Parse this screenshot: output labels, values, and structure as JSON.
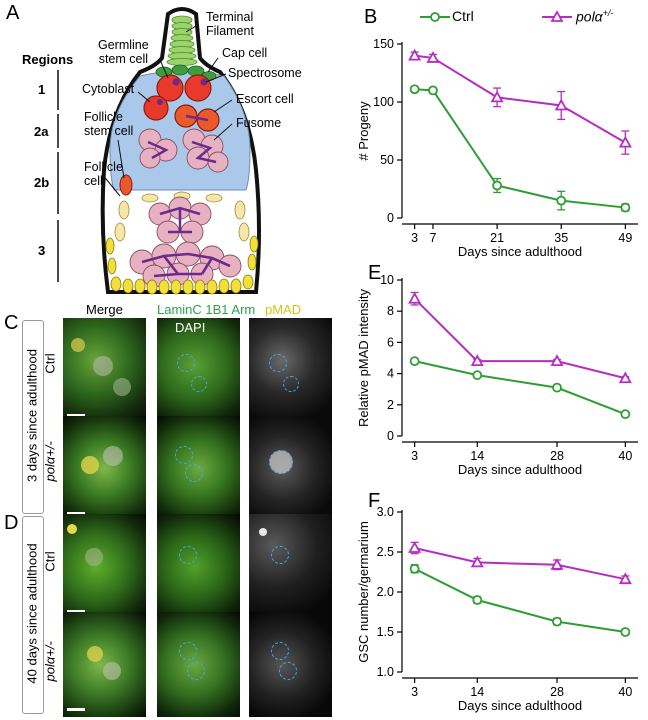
{
  "panel_letters": {
    "a": "A",
    "b": "B",
    "c": "C",
    "d": "D",
    "e": "E",
    "f": "F"
  },
  "diagram": {
    "regions_title": "Regions",
    "regions": [
      "1",
      "2a",
      "2b",
      "3"
    ],
    "labels": {
      "terminal_filament": "Terminal\nFilament",
      "germline_stem_cell": "Germline\nstem cell",
      "cap_cell": "Cap cell",
      "spectrosome": "Spectrosome",
      "cytoblast": "Cytoblast",
      "escort_cell": "Escort cell",
      "follicle_stem_cell": "Follicle\nstem cell",
      "fusome": "Fusome",
      "follicle_cell": "Follicle\ncell"
    }
  },
  "images": {
    "column_headers": {
      "merge": "Merge",
      "lamin": "LaminC 1B1 Arm",
      "dapi": "DAPI",
      "pmad": "pMAD"
    },
    "colors": {
      "lamin": "#2ca24a",
      "pmad": "#e8d43a"
    },
    "group_c_label": "3 days since adulthood",
    "group_d_label": "40 days since adulthood",
    "row_labels": [
      "Ctrl",
      "polα+/-",
      "Ctrl",
      "polα+/-"
    ]
  },
  "legend": {
    "ctrl": "Ctrl",
    "pol_base": "polα",
    "pol_sup": "+/-"
  },
  "colors": {
    "ctrl": "#2e9e33",
    "pol": "#b62cc1"
  },
  "chart_data": [
    {
      "panel": "B",
      "type": "line",
      "xlabel": "Days since adulthood",
      "ylabel": "# Progeny",
      "x": [
        3,
        7,
        21,
        35,
        49
      ],
      "ylim": [
        0,
        150
      ],
      "yticks": [
        0,
        50,
        100,
        150
      ],
      "series": [
        {
          "name": "Ctrl",
          "values": [
            111,
            110,
            28,
            15,
            9
          ],
          "err": [
            2,
            2,
            6,
            8,
            3
          ]
        },
        {
          "name": "polα+/-",
          "values": [
            140,
            138,
            104,
            97,
            65
          ],
          "err": [
            3,
            3,
            8,
            12,
            10
          ]
        }
      ]
    },
    {
      "panel": "E",
      "type": "line",
      "xlabel": "Days since adulthood",
      "ylabel": "Relative pMAD intensity",
      "x": [
        3,
        14,
        28,
        40
      ],
      "ylim": [
        0,
        10
      ],
      "yticks": [
        0,
        2,
        4,
        6,
        8,
        10
      ],
      "series": [
        {
          "name": "Ctrl",
          "values": [
            4.8,
            3.9,
            3.1,
            1.4
          ],
          "err": [
            0.1,
            0.1,
            0.1,
            0.1
          ]
        },
        {
          "name": "polα+/-",
          "values": [
            8.8,
            4.8,
            4.8,
            3.7
          ],
          "err": [
            0.4,
            0.1,
            0.1,
            0.1
          ]
        }
      ]
    },
    {
      "panel": "F",
      "type": "line",
      "xlabel": "Days since adulthood",
      "ylabel": "GSC number/germarium",
      "x": [
        3,
        14,
        28,
        40
      ],
      "ylim": [
        1.0,
        3.0
      ],
      "yticks": [
        1.0,
        1.5,
        2.0,
        2.5,
        3.0
      ],
      "series": [
        {
          "name": "Ctrl",
          "values": [
            2.29,
            1.9,
            1.63,
            1.5
          ],
          "err": [
            0.05,
            0.04,
            0.04,
            0.03
          ]
        },
        {
          "name": "polα+/-",
          "values": [
            2.55,
            2.37,
            2.34,
            2.16
          ],
          "err": [
            0.07,
            0.05,
            0.06,
            0.04
          ]
        }
      ]
    }
  ]
}
